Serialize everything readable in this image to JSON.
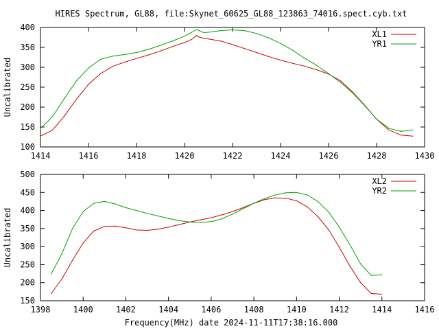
{
  "figure": {
    "title": "HIRES Spectrum, GL88, file:Skynet_60625_GL88_123863_74016.spect.cyb.txt",
    "xlabel": "Frequency(MHz) date 2024-11-11T17:38:16.000"
  },
  "chart_data": [
    {
      "type": "line",
      "title": "HIRES Spectrum, GL88, file:Skynet_60625_GL88_123863_74016.spect.cyb.txt",
      "xlabel": "",
      "ylabel": "Uncalibrated",
      "xlim": [
        1414,
        1430
      ],
      "ylim": [
        100,
        400
      ],
      "xticks": [
        1414,
        1416,
        1418,
        1420,
        1422,
        1424,
        1426,
        1428,
        1430
      ],
      "yticks": [
        100,
        150,
        200,
        250,
        300,
        350,
        400
      ],
      "grid": false,
      "legend_position": "top-right",
      "series": [
        {
          "name": "XL1",
          "color": "#cc0000",
          "x": [
            1414.0,
            1414.5,
            1415.0,
            1415.5,
            1416.0,
            1416.5,
            1417.0,
            1417.5,
            1418.0,
            1418.5,
            1419.0,
            1419.5,
            1420.0,
            1420.3,
            1420.5,
            1420.6,
            1420.8,
            1421.0,
            1421.5,
            1422.0,
            1422.5,
            1423.0,
            1423.5,
            1424.0,
            1424.5,
            1425.0,
            1425.5,
            1426.0,
            1426.5,
            1427.0,
            1427.5,
            1428.0,
            1428.5,
            1429.0,
            1429.5
          ],
          "y": [
            127,
            142,
            178,
            220,
            257,
            284,
            302,
            313,
            322,
            331,
            341,
            352,
            362,
            370,
            380,
            376,
            373,
            371,
            366,
            357,
            347,
            337,
            327,
            318,
            310,
            303,
            294,
            283,
            266,
            238,
            205,
            170,
            143,
            130,
            127
          ]
        },
        {
          "name": "YR1",
          "color": "#00a000",
          "x": [
            1414.0,
            1414.5,
            1415.0,
            1415.5,
            1416.0,
            1416.5,
            1417.0,
            1417.5,
            1418.0,
            1418.5,
            1419.0,
            1419.5,
            1420.0,
            1420.3,
            1420.5,
            1420.6,
            1420.8,
            1421.0,
            1421.5,
            1422.0,
            1422.5,
            1423.0,
            1423.5,
            1424.0,
            1424.5,
            1425.0,
            1425.5,
            1426.0,
            1426.5,
            1427.0,
            1427.5,
            1428.0,
            1428.5,
            1429.0,
            1429.5
          ],
          "y": [
            146,
            176,
            222,
            266,
            298,
            320,
            328,
            332,
            337,
            345,
            355,
            366,
            378,
            388,
            395,
            392,
            387,
            388,
            392,
            394,
            392,
            385,
            374,
            360,
            343,
            323,
            305,
            284,
            262,
            236,
            204,
            170,
            147,
            139,
            143
          ]
        }
      ]
    },
    {
      "type": "line",
      "title": "",
      "xlabel": "Frequency(MHz) date 2024-11-11T17:38:16.000",
      "ylabel": "Uncalibrated",
      "xlim": [
        1398,
        1416
      ],
      "ylim": [
        150,
        500
      ],
      "xticks": [
        1398,
        1400,
        1402,
        1404,
        1406,
        1408,
        1410,
        1412,
        1414,
        1416
      ],
      "yticks": [
        150,
        200,
        250,
        300,
        350,
        400,
        450,
        500
      ],
      "grid": false,
      "legend_position": "top-right",
      "series": [
        {
          "name": "XL2",
          "color": "#cc0000",
          "x": [
            1398.5,
            1399.0,
            1399.5,
            1400.0,
            1400.5,
            1401.0,
            1401.5,
            1402.0,
            1402.5,
            1403.0,
            1403.5,
            1404.0,
            1404.5,
            1405.0,
            1405.5,
            1406.0,
            1406.5,
            1407.0,
            1407.5,
            1408.0,
            1408.5,
            1409.0,
            1409.5,
            1410.0,
            1410.5,
            1411.0,
            1411.5,
            1412.0,
            1412.5,
            1413.0,
            1413.5,
            1414.0
          ],
          "y": [
            170,
            210,
            262,
            310,
            343,
            356,
            357,
            352,
            346,
            345,
            348,
            354,
            361,
            368,
            374,
            380,
            388,
            397,
            408,
            420,
            430,
            435,
            434,
            427,
            410,
            383,
            347,
            298,
            246,
            200,
            170,
            168
          ]
        },
        {
          "name": "YR2",
          "color": "#00a000",
          "x": [
            1398.5,
            1399.0,
            1399.5,
            1400.0,
            1400.5,
            1401.0,
            1401.5,
            1402.0,
            1402.5,
            1403.0,
            1403.5,
            1404.0,
            1404.5,
            1405.0,
            1405.5,
            1406.0,
            1406.5,
            1407.0,
            1407.5,
            1408.0,
            1408.5,
            1409.0,
            1409.5,
            1410.0,
            1410.5,
            1411.0,
            1411.5,
            1412.0,
            1412.5,
            1413.0,
            1413.5,
            1414.0
          ],
          "y": [
            224,
            280,
            350,
            397,
            420,
            425,
            418,
            408,
            400,
            392,
            385,
            378,
            372,
            368,
            367,
            369,
            377,
            390,
            405,
            420,
            433,
            443,
            449,
            450,
            443,
            425,
            396,
            354,
            305,
            252,
            220,
            222
          ]
        }
      ]
    }
  ]
}
